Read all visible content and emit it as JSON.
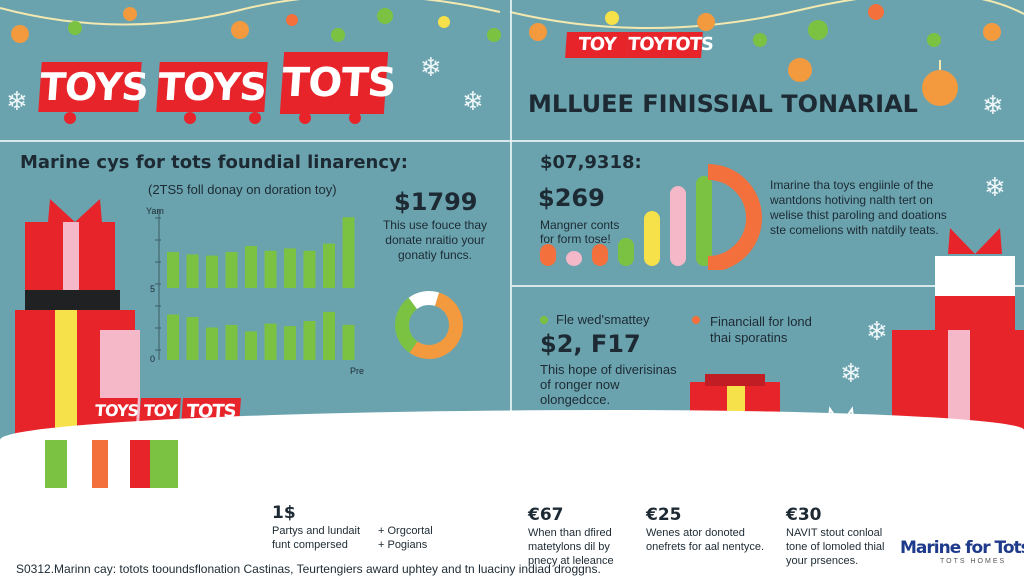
{
  "logos": {
    "top_left": [
      "TOYS",
      "TOYS",
      "TOTS"
    ],
    "top_right": [
      "TOY",
      "TOY",
      "TOTS"
    ],
    "bottom_left": [
      "TOYS",
      "TOY",
      "TOTS"
    ]
  },
  "header_right": "MLLUEE FINISSIAL TONARIAL",
  "left_panel": {
    "title": "Marine cys for tots foundial linarency:",
    "subtitle": "(2TS5 foll donay on doration toy)",
    "axis_top": "Yam",
    "axis_mid": "5",
    "axis_bottom": "0",
    "axis_x_label": "Pre",
    "big_value": "$1799",
    "desc": "This use fouce thay donate nraitio your gonatiy funcs."
  },
  "right_panel": {
    "top_value": "$07,9318:",
    "mid_value": "$269",
    "mid_desc": "Mangner conts for form tose!",
    "side_text": "Imarine tha toys engiinle of the wantdons hotiving nalth tert on welise thist paroling and doations ste comelions with natdily teats."
  },
  "lower_right": {
    "bullet1": "Fle wed'smattey",
    "bullet2": "Financiall for lond thai sporatins",
    "value": "$2, F17",
    "desc": "This hope of diverisinas of ronger now olongedcce."
  },
  "footer_stats": [
    {
      "value": "1$",
      "line1": "Partys and lundait",
      "line2": "funt compersed"
    },
    {
      "value": "",
      "line1": "+ Orgcortal",
      "line2": "+ Pogians"
    },
    {
      "value": "€67",
      "line1": "When than dfired",
      "line2": "matetylons dil by",
      "line3": "pnecy at leleance"
    },
    {
      "value": "€25",
      "line1": "Wenes ator donoted",
      "line2": "onefrets for aal nentyce."
    },
    {
      "value": "€30",
      "line1": "NAVIT stout conloal",
      "line2": "tone of lomoled thial",
      "line3": "your prsences."
    }
  ],
  "footer_note": "S0312.Marinn cay: totots tooundsflonation Castinas, Teurtengiers award uphtey and tn luaciny indiad droggns.",
  "brand": {
    "name": "Marine for Tots",
    "sub": "TOTS HOMES"
  },
  "chart_data": [
    {
      "type": "bar",
      "series": [
        {
          "values": [
            30,
            28,
            27,
            30,
            35,
            31,
            33,
            31,
            37,
            59
          ]
        },
        {
          "values": [
            35,
            33,
            25,
            27,
            22,
            28,
            26,
            30,
            37,
            27
          ]
        }
      ],
      "colors": [
        "#f36f3b",
        "#7cc242"
      ]
    },
    {
      "type": "pie",
      "values": [
        55,
        30,
        15
      ],
      "colors": [
        "#f39a3f",
        "#7cc242",
        "#ffffff"
      ]
    },
    {
      "type": "bar",
      "values": [
        22,
        15,
        22,
        28,
        55,
        80,
        90
      ],
      "colors": [
        "#f36f3b",
        "#f4b8c8",
        "#f36f3b",
        "#7cc242",
        "#f6e14a",
        "#f4b8c8",
        "#7cc242"
      ]
    }
  ],
  "colors": {
    "red": "#e8242b",
    "green": "#7cc242",
    "orange": "#f36f3b",
    "yellow": "#f6e14a",
    "pink": "#f4b8c8",
    "teal": "#6aa3ae"
  }
}
